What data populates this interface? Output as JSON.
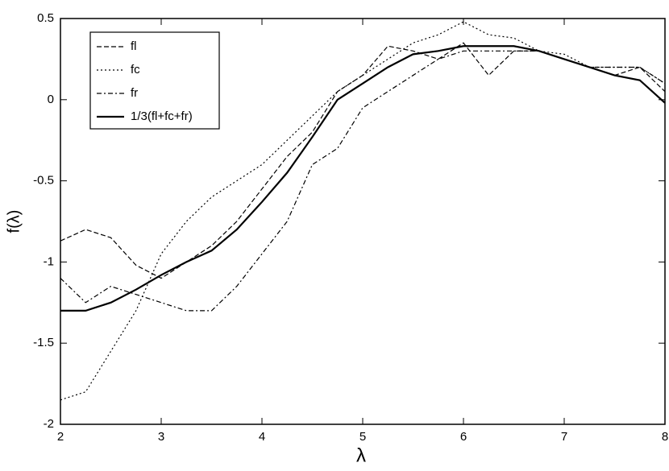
{
  "chart_data": {
    "type": "line",
    "x_label": "λ",
    "y_label": "f(λ)",
    "x": [
      2,
      2.25,
      2.5,
      2.75,
      3,
      3.25,
      3.5,
      3.75,
      4,
      4.25,
      4.5,
      4.75,
      5,
      5.25,
      5.5,
      5.75,
      6,
      6.25,
      6.5,
      6.75,
      7,
      7.25,
      7.5,
      7.75,
      8
    ],
    "series": [
      {
        "name": "fl",
        "color": "#000000",
        "style": "dashed",
        "values": [
          -0.87,
          -0.8,
          -0.85,
          -1.02,
          -1.1,
          -1.0,
          -0.9,
          -0.75,
          -0.55,
          -0.35,
          -0.2,
          0.05,
          0.15,
          0.33,
          0.3,
          0.25,
          0.35,
          0.15,
          0.3,
          0.3,
          0.25,
          0.2,
          0.15,
          0.2,
          0.05
        ]
      },
      {
        "name": "fc",
        "color": "#000000",
        "style": "dotted",
        "values": [
          -1.85,
          -1.8,
          -1.55,
          -1.3,
          -0.95,
          -0.75,
          -0.6,
          -0.5,
          -0.4,
          -0.25,
          -0.1,
          0.05,
          0.15,
          0.25,
          0.35,
          0.4,
          0.48,
          0.4,
          0.38,
          0.3,
          0.28,
          0.2,
          0.2,
          0.2,
          0.1
        ]
      },
      {
        "name": "fr",
        "color": "#000000",
        "style": "dashdot",
        "values": [
          -1.1,
          -1.25,
          -1.15,
          -1.2,
          -1.25,
          -1.3,
          -1.3,
          -1.15,
          -0.95,
          -0.75,
          -0.4,
          -0.3,
          -0.05,
          0.05,
          0.15,
          0.25,
          0.3,
          0.3,
          0.3,
          0.3,
          0.25,
          0.2,
          0.2,
          0.2,
          0.1
        ]
      },
      {
        "name": "1/3(fl+fc+fr)",
        "color": "#000000",
        "style": "solid",
        "values": [
          -1.3,
          -1.3,
          -1.25,
          -1.17,
          -1.08,
          -1.0,
          -0.93,
          -0.8,
          -0.63,
          -0.45,
          -0.23,
          0.0,
          0.1,
          0.2,
          0.28,
          0.3,
          0.33,
          0.33,
          0.33,
          0.3,
          0.25,
          0.2,
          0.15,
          0.12,
          -0.02
        ]
      }
    ],
    "xlim": [
      2,
      8
    ],
    "xticks": [
      2,
      3,
      4,
      5,
      6,
      7,
      8
    ],
    "ylim": [
      -2,
      0.5
    ],
    "yticks": [
      -2,
      -1.5,
      -1,
      -0.5,
      0,
      0.5
    ],
    "legend": "upper-left",
    "grid": false
  }
}
